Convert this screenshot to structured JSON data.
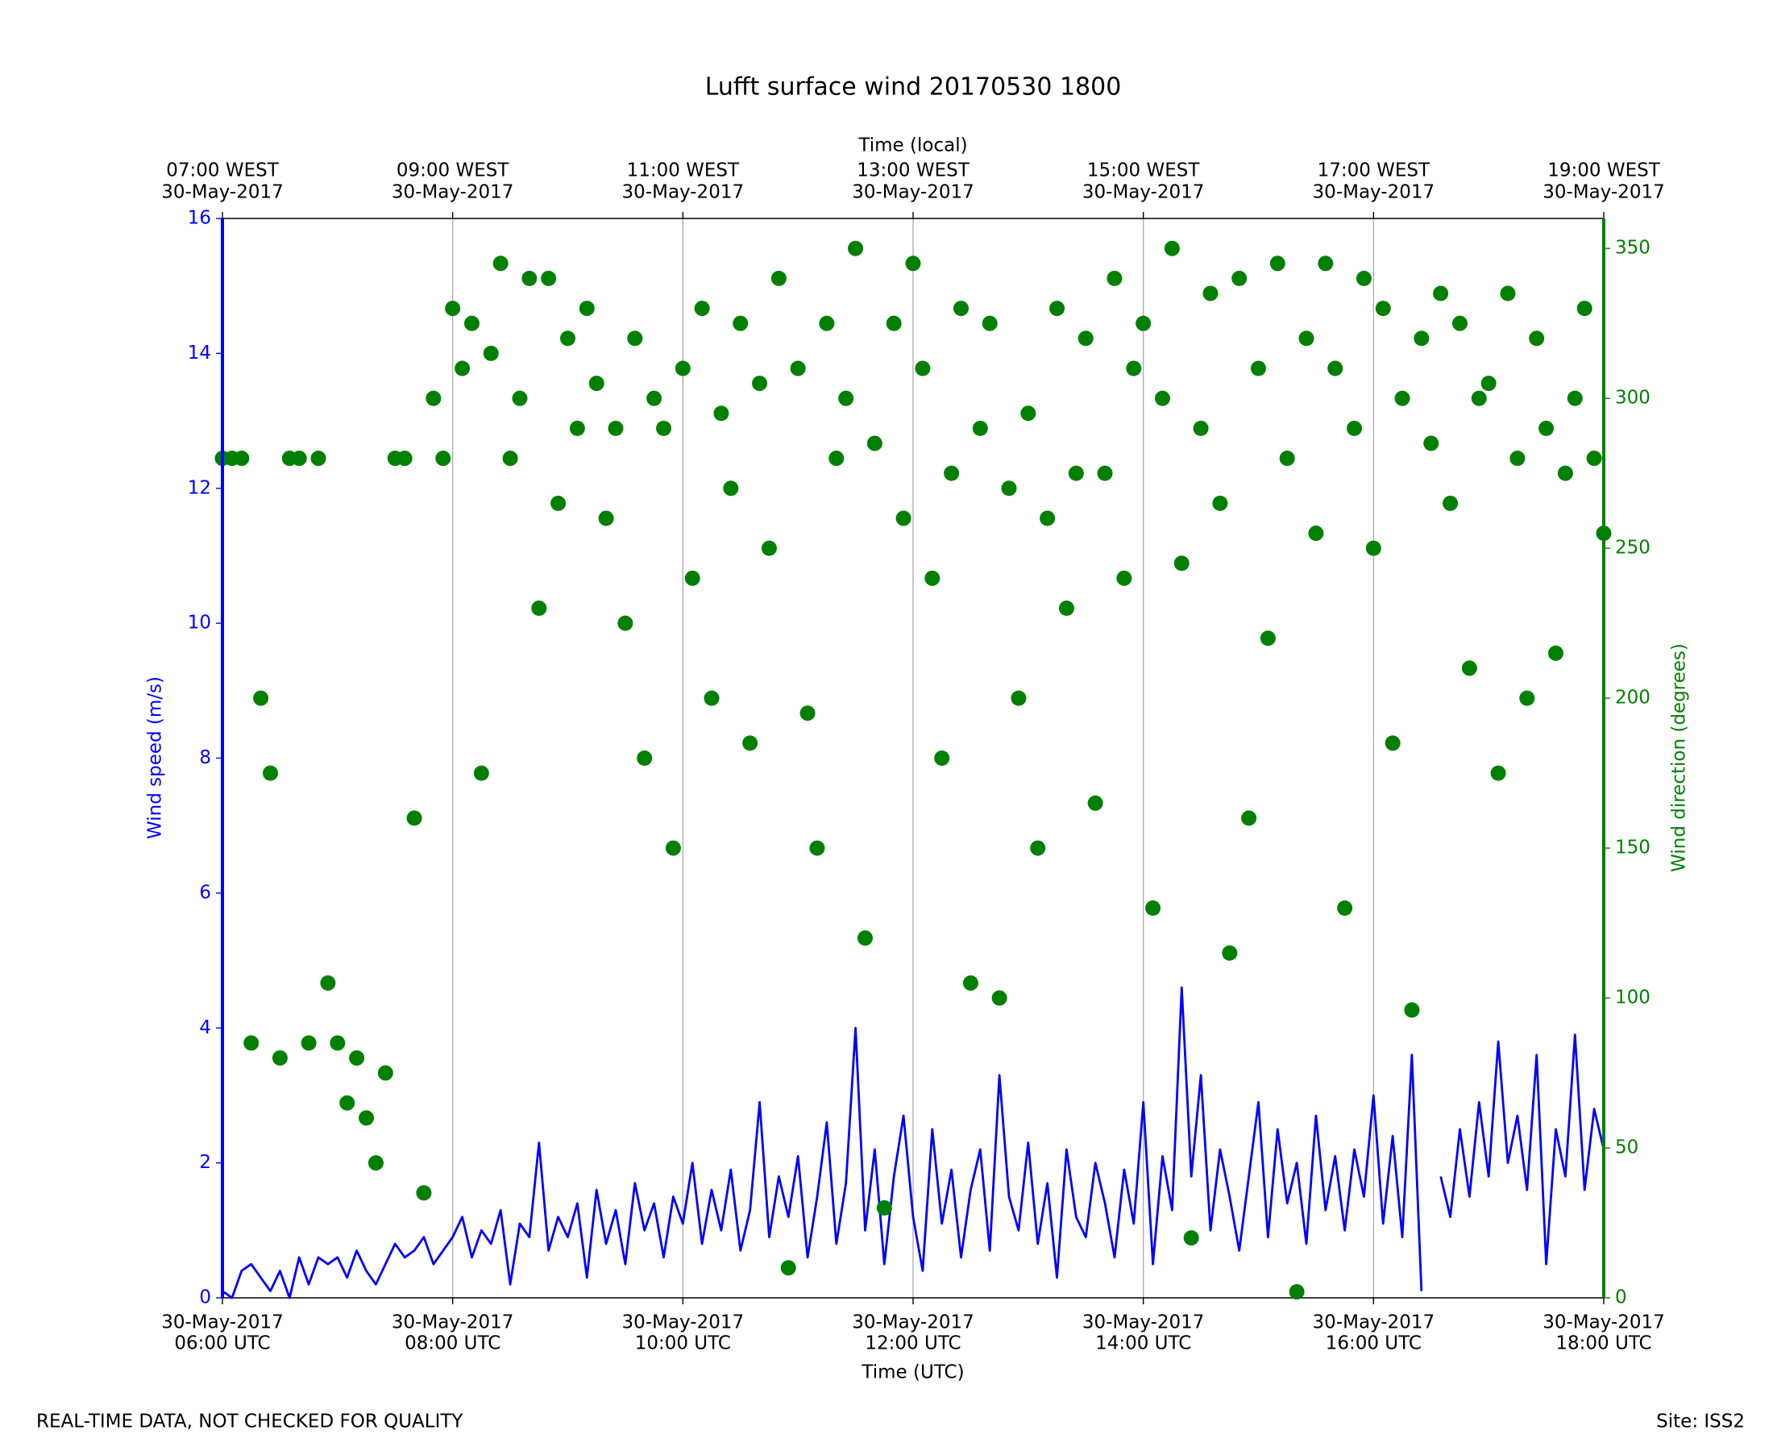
{
  "chart_data": {
    "type": "line",
    "title": "Lufft surface wind 20170530 1800",
    "xlabel": "Time (UTC)",
    "x2label": "Time (local)",
    "ylabel": "Wind speed (m/s)",
    "y2label": "Wind direction (degrees)",
    "footer_left": "REAL-TIME DATA, NOT CHECKED FOR QUALITY",
    "footer_right": "Site: ISS2",
    "grid": true,
    "xlim": [
      "2017-05-30T06:00",
      "2017-05-30T18:00"
    ],
    "xticks": [
      {
        "value": "2017-05-30T06:00",
        "label": [
          "30-May-2017",
          "06:00 UTC"
        ]
      },
      {
        "value": "2017-05-30T08:00",
        "label": [
          "30-May-2017",
          "08:00 UTC"
        ]
      },
      {
        "value": "2017-05-30T10:00",
        "label": [
          "30-May-2017",
          "10:00 UTC"
        ]
      },
      {
        "value": "2017-05-30T12:00",
        "label": [
          "30-May-2017",
          "12:00 UTC"
        ]
      },
      {
        "value": "2017-05-30T14:00",
        "label": [
          "30-May-2017",
          "14:00 UTC"
        ]
      },
      {
        "value": "2017-05-30T16:00",
        "label": [
          "30-May-2017",
          "16:00 UTC"
        ]
      },
      {
        "value": "2017-05-30T18:00",
        "label": [
          "30-May-2017",
          "18:00 UTC"
        ]
      }
    ],
    "x2ticks": [
      {
        "value": "2017-05-30T06:00",
        "label": [
          "07:00 WEST",
          "30-May-2017"
        ]
      },
      {
        "value": "2017-05-30T08:00",
        "label": [
          "09:00 WEST",
          "30-May-2017"
        ]
      },
      {
        "value": "2017-05-30T10:00",
        "label": [
          "11:00 WEST",
          "30-May-2017"
        ]
      },
      {
        "value": "2017-05-30T12:00",
        "label": [
          "13:00 WEST",
          "30-May-2017"
        ]
      },
      {
        "value": "2017-05-30T14:00",
        "label": [
          "15:00 WEST",
          "30-May-2017"
        ]
      },
      {
        "value": "2017-05-30T16:00",
        "label": [
          "17:00 WEST",
          "30-May-2017"
        ]
      },
      {
        "value": "2017-05-30T18:00",
        "label": [
          "19:00 WEST",
          "30-May-2017"
        ]
      }
    ],
    "ylim": [
      0,
      16
    ],
    "yticks": [
      0,
      2,
      4,
      6,
      8,
      10,
      12,
      14,
      16
    ],
    "ycolor": "#0000ff",
    "y2lim": [
      0,
      360
    ],
    "y2ticks": [
      0,
      50,
      100,
      150,
      200,
      250,
      300,
      350
    ],
    "y2color": "#008000",
    "x": [
      "2017-05-30T06:00",
      "2017-05-30T06:05",
      "2017-05-30T06:10",
      "2017-05-30T06:15",
      "2017-05-30T06:20",
      "2017-05-30T06:25",
      "2017-05-30T06:30",
      "2017-05-30T06:35",
      "2017-05-30T06:40",
      "2017-05-30T06:45",
      "2017-05-30T06:50",
      "2017-05-30T06:55",
      "2017-05-30T07:00",
      "2017-05-30T07:05",
      "2017-05-30T07:10",
      "2017-05-30T07:15",
      "2017-05-30T07:20",
      "2017-05-30T07:25",
      "2017-05-30T07:30",
      "2017-05-30T07:35",
      "2017-05-30T07:40",
      "2017-05-30T07:45",
      "2017-05-30T07:50",
      "2017-05-30T07:55",
      "2017-05-30T08:00",
      "2017-05-30T08:05",
      "2017-05-30T08:10",
      "2017-05-30T08:15",
      "2017-05-30T08:20",
      "2017-05-30T08:25",
      "2017-05-30T08:30",
      "2017-05-30T08:35",
      "2017-05-30T08:40",
      "2017-05-30T08:45",
      "2017-05-30T08:50",
      "2017-05-30T08:55",
      "2017-05-30T09:00",
      "2017-05-30T09:05",
      "2017-05-30T09:10",
      "2017-05-30T09:15",
      "2017-05-30T09:20",
      "2017-05-30T09:25",
      "2017-05-30T09:30",
      "2017-05-30T09:35",
      "2017-05-30T09:40",
      "2017-05-30T09:45",
      "2017-05-30T09:50",
      "2017-05-30T09:55",
      "2017-05-30T10:00",
      "2017-05-30T10:05",
      "2017-05-30T10:10",
      "2017-05-30T10:15",
      "2017-05-30T10:20",
      "2017-05-30T10:25",
      "2017-05-30T10:30",
      "2017-05-30T10:35",
      "2017-05-30T10:40",
      "2017-05-30T10:45",
      "2017-05-30T10:50",
      "2017-05-30T10:55",
      "2017-05-30T11:00",
      "2017-05-30T11:05",
      "2017-05-30T11:10",
      "2017-05-30T11:15",
      "2017-05-30T11:20",
      "2017-05-30T11:25",
      "2017-05-30T11:30",
      "2017-05-30T11:35",
      "2017-05-30T11:40",
      "2017-05-30T11:45",
      "2017-05-30T11:50",
      "2017-05-30T11:55",
      "2017-05-30T12:00",
      "2017-05-30T12:05",
      "2017-05-30T12:10",
      "2017-05-30T12:15",
      "2017-05-30T12:20",
      "2017-05-30T12:25",
      "2017-05-30T12:30",
      "2017-05-30T12:35",
      "2017-05-30T12:40",
      "2017-05-30T12:45",
      "2017-05-30T12:50",
      "2017-05-30T12:55",
      "2017-05-30T13:00",
      "2017-05-30T13:05",
      "2017-05-30T13:10",
      "2017-05-30T13:15",
      "2017-05-30T13:20",
      "2017-05-30T13:25",
      "2017-05-30T13:30",
      "2017-05-30T13:35",
      "2017-05-30T13:40",
      "2017-05-30T13:45",
      "2017-05-30T13:50",
      "2017-05-30T13:55",
      "2017-05-30T14:00",
      "2017-05-30T14:05",
      "2017-05-30T14:10",
      "2017-05-30T14:15",
      "2017-05-30T14:20",
      "2017-05-30T14:25",
      "2017-05-30T14:30",
      "2017-05-30T14:35",
      "2017-05-30T14:40",
      "2017-05-30T14:45",
      "2017-05-30T14:50",
      "2017-05-30T14:55",
      "2017-05-30T15:00",
      "2017-05-30T15:05",
      "2017-05-30T15:10",
      "2017-05-30T15:15",
      "2017-05-30T15:20",
      "2017-05-30T15:25",
      "2017-05-30T15:30",
      "2017-05-30T15:35",
      "2017-05-30T15:40",
      "2017-05-30T15:45",
      "2017-05-30T15:50",
      "2017-05-30T15:55",
      "2017-05-30T16:00",
      "2017-05-30T16:05",
      "2017-05-30T16:10",
      "2017-05-30T16:15",
      "2017-05-30T16:20",
      "2017-05-30T16:25",
      "2017-05-30T16:30",
      "2017-05-30T16:35",
      "2017-05-30T16:40",
      "2017-05-30T16:45",
      "2017-05-30T16:50",
      "2017-05-30T16:55",
      "2017-05-30T17:00",
      "2017-05-30T17:05",
      "2017-05-30T17:10",
      "2017-05-30T17:15",
      "2017-05-30T17:20",
      "2017-05-30T17:25",
      "2017-05-30T17:30",
      "2017-05-30T17:35",
      "2017-05-30T17:40",
      "2017-05-30T17:45",
      "2017-05-30T17:50",
      "2017-05-30T17:55",
      "2017-05-30T18:00"
    ],
    "series": [
      {
        "name": "Wind speed",
        "type": "line",
        "color": "#0000ff",
        "axis": "y",
        "values": [
          0.1,
          0.0,
          0.4,
          0.5,
          0.3,
          0.1,
          0.4,
          0.0,
          0.6,
          0.2,
          0.6,
          0.5,
          0.6,
          0.3,
          0.7,
          0.4,
          0.2,
          0.5,
          0.8,
          0.6,
          0.7,
          0.9,
          0.5,
          0.7,
          0.9,
          1.2,
          0.6,
          1.0,
          0.8,
          1.3,
          0.2,
          1.1,
          0.9,
          2.3,
          0.7,
          1.2,
          0.9,
          1.4,
          0.3,
          1.6,
          0.8,
          1.3,
          0.5,
          1.7,
          1.0,
          1.4,
          0.6,
          1.5,
          1.1,
          2.0,
          0.8,
          1.6,
          1.0,
          1.9,
          0.7,
          1.3,
          2.9,
          0.9,
          1.8,
          1.2,
          2.1,
          0.6,
          1.5,
          2.6,
          0.8,
          1.7,
          4.0,
          1.0,
          2.2,
          0.5,
          1.8,
          2.7,
          1.2,
          0.4,
          2.5,
          1.1,
          1.9,
          0.6,
          1.6,
          2.2,
          0.7,
          3.3,
          1.5,
          1.0,
          2.3,
          0.8,
          1.7,
          0.3,
          2.2,
          1.2,
          0.9,
          2.0,
          1.4,
          0.6,
          1.9,
          1.1,
          2.9,
          0.5,
          2.1,
          1.3,
          4.6,
          1.8,
          3.3,
          1.0,
          2.2,
          1.5,
          0.7,
          1.8,
          2.9,
          0.9,
          2.5,
          1.4,
          2.0,
          0.8,
          2.7,
          1.3,
          2.1,
          1.0,
          2.2,
          1.5,
          3.0,
          1.1,
          2.4,
          0.9,
          3.6,
          0.1,
          null,
          1.8,
          1.2,
          2.5,
          1.5,
          2.9,
          1.8,
          3.8,
          2.0,
          2.7,
          1.6,
          3.6,
          0.5,
          2.5,
          1.8,
          3.9,
          1.6,
          2.8,
          2.2
        ]
      },
      {
        "name": "Wind direction",
        "type": "scatter",
        "color": "#008000",
        "axis": "y2",
        "values": [
          280,
          280,
          280,
          85,
          200,
          175,
          80,
          280,
          280,
          85,
          280,
          105,
          85,
          65,
          80,
          60,
          45,
          75,
          280,
          280,
          160,
          35,
          300,
          280,
          330,
          310,
          325,
          175,
          315,
          345,
          280,
          300,
          340,
          230,
          340,
          265,
          320,
          290,
          330,
          305,
          260,
          290,
          225,
          320,
          180,
          300,
          290,
          150,
          310,
          240,
          330,
          200,
          295,
          270,
          325,
          185,
          305,
          250,
          340,
          10,
          310,
          195,
          150,
          325,
          280,
          300,
          350,
          120,
          285,
          30,
          325,
          260,
          345,
          310,
          240,
          180,
          275,
          330,
          105,
          290,
          325,
          100,
          270,
          200,
          295,
          150,
          260,
          330,
          230,
          275,
          320,
          165,
          275,
          340,
          240,
          310,
          325,
          130,
          300,
          350,
          245,
          20,
          290,
          335,
          265,
          115,
          340,
          160,
          310,
          220,
          345,
          280,
          2,
          320,
          255,
          345,
          310,
          130,
          290,
          340,
          250,
          330,
          185,
          300,
          96,
          320,
          285,
          335,
          265,
          325,
          210,
          300,
          305,
          175,
          335,
          280,
          200,
          320,
          290,
          215,
          275,
          300,
          330,
          280,
          255
        ]
      }
    ]
  }
}
